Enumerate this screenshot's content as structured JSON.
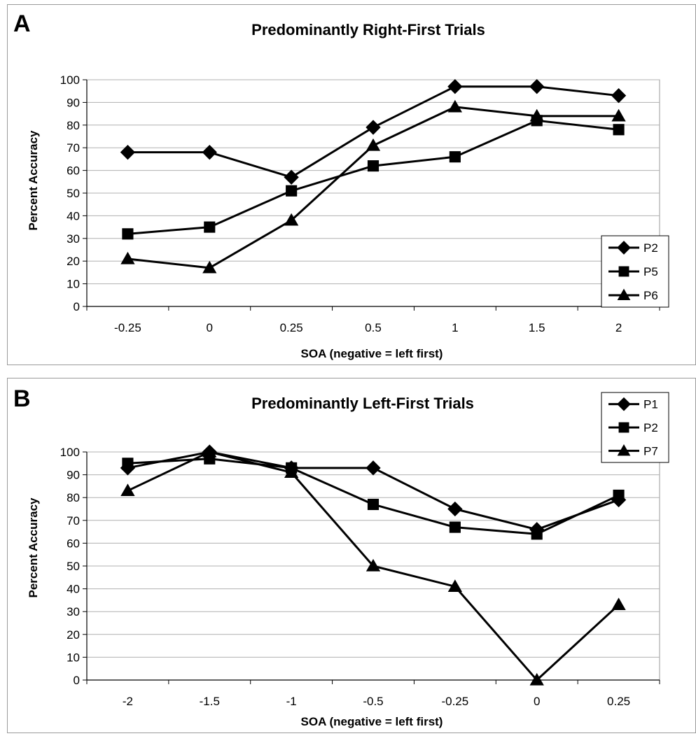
{
  "chart_data": [
    {
      "type": "line",
      "panel_label": "A",
      "title": "Predominantly Right-First Trials",
      "xlabel": "SOA (negative = left first)",
      "ylabel": "Percent Accuracy",
      "categories": [
        "-0.25",
        "0",
        "0.25",
        "0.5",
        "1",
        "1.5",
        "2"
      ],
      "ylim": [
        0,
        100
      ],
      "yticks": [
        0,
        10,
        20,
        30,
        40,
        50,
        60,
        70,
        80,
        90,
        100
      ],
      "grid": true,
      "legend_position": "right",
      "series": [
        {
          "name": "P2",
          "marker": "diamond",
          "values": [
            68,
            68,
            57,
            79,
            97,
            97,
            93
          ]
        },
        {
          "name": "P5",
          "marker": "square",
          "values": [
            32,
            35,
            51,
            62,
            66,
            82,
            78
          ]
        },
        {
          "name": "P6",
          "marker": "triangle",
          "values": [
            21,
            17,
            38,
            71,
            88,
            84,
            84
          ]
        }
      ]
    },
    {
      "type": "line",
      "panel_label": "B",
      "title": "Predominantly Left-First Trials",
      "xlabel": "SOA (negative = left first)",
      "ylabel": "Percent Accuracy",
      "categories": [
        "-2",
        "-1.5",
        "-1",
        "-0.5",
        "-0.25",
        "0",
        "0.25"
      ],
      "ylim": [
        0,
        100
      ],
      "yticks": [
        0,
        10,
        20,
        30,
        40,
        50,
        60,
        70,
        80,
        90,
        100
      ],
      "grid": true,
      "legend_position": "top-right",
      "series": [
        {
          "name": "P1",
          "marker": "diamond",
          "values": [
            93,
            100,
            93,
            93,
            75,
            66,
            79
          ]
        },
        {
          "name": "P2",
          "marker": "square",
          "values": [
            95,
            97,
            93,
            77,
            67,
            64,
            81
          ]
        },
        {
          "name": "P7",
          "marker": "triangle",
          "values": [
            83,
            100,
            91,
            50,
            41,
            0,
            33
          ]
        }
      ]
    }
  ]
}
